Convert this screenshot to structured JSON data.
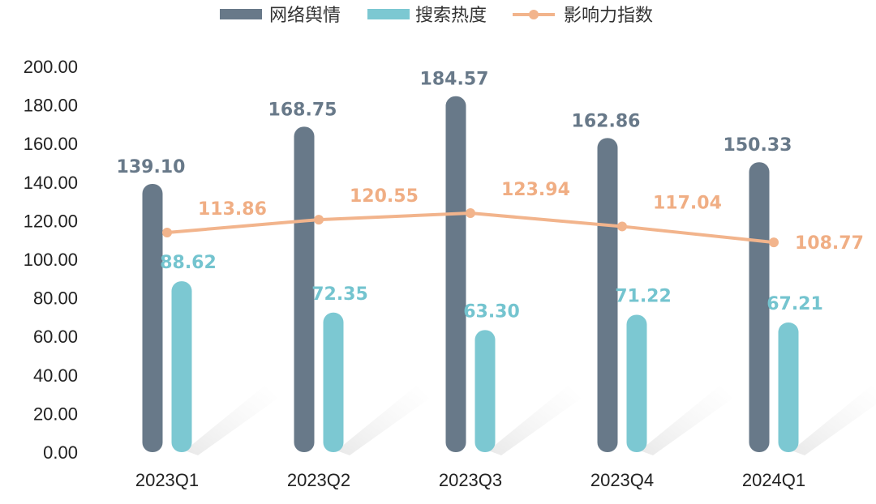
{
  "chart_data": {
    "type": "bar",
    "categories": [
      "2023Q1",
      "2023Q2",
      "2023Q3",
      "2023Q4",
      "2024Q1"
    ],
    "series": [
      {
        "name": "网络舆情",
        "kind": "bar",
        "color": "#687989",
        "label_color": "#687989",
        "values": [
          139.1,
          168.75,
          184.57,
          162.86,
          150.33
        ]
      },
      {
        "name": "搜索热度",
        "kind": "bar",
        "color": "#7CC8D2",
        "label_color": "#74C4CF",
        "values": [
          88.62,
          72.35,
          63.3,
          71.22,
          67.21
        ]
      },
      {
        "name": "影响力指数",
        "kind": "line",
        "color": "#F2B48C",
        "label_color": "#F0AE84",
        "values": [
          113.86,
          120.55,
          123.94,
          117.04,
          108.77
        ]
      }
    ],
    "value_labels": [
      [
        "139.10",
        "168.75",
        "184.57",
        "162.86",
        "150.33"
      ],
      [
        "88.62",
        "72.35",
        "63.30",
        "71.22",
        "67.21"
      ],
      [
        "113.86",
        "120.55",
        "123.94",
        "117.04",
        "108.77"
      ]
    ],
    "ylim": [
      0,
      200
    ],
    "ytick_labels": [
      "0.00",
      "20.00",
      "40.00",
      "60.00",
      "80.00",
      "100.00",
      "120.00",
      "140.00",
      "160.00",
      "180.00",
      "200.00"
    ],
    "xlabel": "",
    "ylabel": "",
    "title": "",
    "grid": false,
    "legend_position": "top-center"
  }
}
